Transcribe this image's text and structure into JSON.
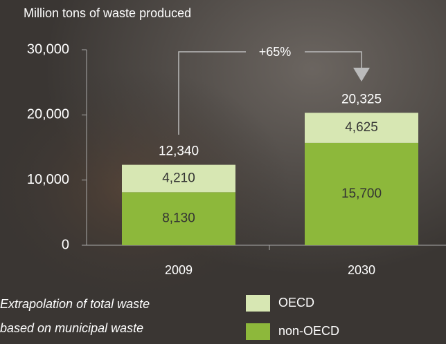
{
  "chart_data": {
    "type": "stacked_bar",
    "title": "Million tons of waste produced",
    "categories": [
      "2009",
      "2030"
    ],
    "series": [
      {
        "name": "non-OECD",
        "color": "#8db83b",
        "values": [
          8130,
          15700
        ],
        "value_labels": [
          "8,130",
          "15,700"
        ]
      },
      {
        "name": "OECD",
        "color": "#d7e7b3",
        "values": [
          4210,
          4625
        ],
        "value_labels": [
          "4,210",
          "4,625"
        ]
      }
    ],
    "totals": {
      "values": [
        12340,
        20325
      ],
      "value_labels": [
        "12,340",
        "20,325"
      ]
    },
    "annotation": "+65%",
    "ylim": [
      0,
      30000
    ],
    "yticks": [
      0,
      {
        "value": 10000,
        "label": "10,000"
      },
      {
        "value": 20000,
        "label": "20,000"
      },
      {
        "value": 30000,
        "label": "30,000"
      }
    ],
    "footnote": [
      "Extrapolation of total waste",
      "based on municipal waste"
    ]
  }
}
